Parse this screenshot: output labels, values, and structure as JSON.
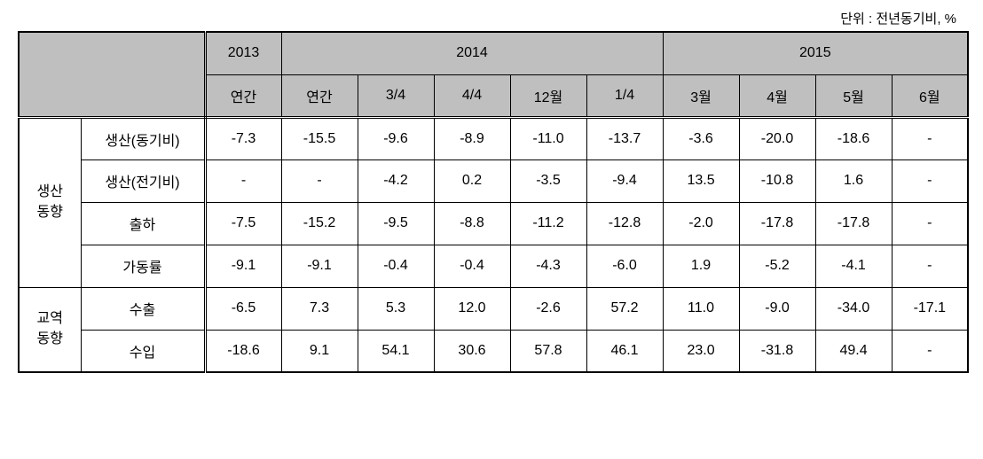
{
  "unit_label": "단위 : 전년동기비, %",
  "header": {
    "year_groups": [
      "2013",
      "2014",
      "2015"
    ],
    "sub_2013": [
      "연간"
    ],
    "sub_2014": [
      "연간",
      "3/4",
      "4/4",
      "12월",
      "1/4"
    ],
    "sub_2015": [
      "3월",
      "4월",
      "5월",
      "6월"
    ]
  },
  "row_groups": [
    {
      "label": "생산\n동향",
      "rows": [
        {
          "label": "생산(동기비)",
          "values": [
            "-7.3",
            "-15.5",
            "-9.6",
            "-8.9",
            "-11.0",
            "-13.7",
            "-3.6",
            "-20.0",
            "-18.6",
            "-"
          ]
        },
        {
          "label": "생산(전기비)",
          "values": [
            "-",
            "-",
            "-4.2",
            "0.2",
            "-3.5",
            "-9.4",
            "13.5",
            "-10.8",
            "1.6",
            "-"
          ]
        },
        {
          "label": "출하",
          "values": [
            "-7.5",
            "-15.2",
            "-9.5",
            "-8.8",
            "-11.2",
            "-12.8",
            "-2.0",
            "-17.8",
            "-17.8",
            "-"
          ]
        },
        {
          "label": "가동률",
          "values": [
            "-9.1",
            "-9.1",
            "-0.4",
            "-0.4",
            "-4.3",
            "-6.0",
            "1.9",
            "-5.2",
            "-4.1",
            "-"
          ]
        }
      ]
    },
    {
      "label": "교역\n동향",
      "rows": [
        {
          "label": "수출",
          "values": [
            "-6.5",
            "7.3",
            "5.3",
            "12.0",
            "-2.6",
            "57.2",
            "11.0",
            "-9.0",
            "-34.0",
            "-17.1"
          ]
        },
        {
          "label": "수입",
          "values": [
            "-18.6",
            "9.1",
            "54.1",
            "30.6",
            "57.8",
            "46.1",
            "23.0",
            "-31.8",
            "49.4",
            "-"
          ]
        }
      ]
    }
  ],
  "colors": {
    "header_bg": "#bfbfbf",
    "border": "#000000",
    "background": "#ffffff",
    "text": "#000000"
  }
}
